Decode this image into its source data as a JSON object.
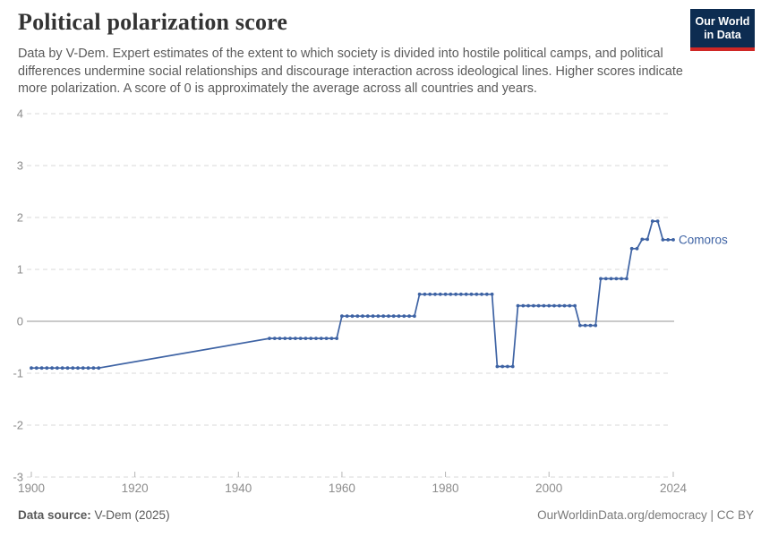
{
  "header": {
    "title": "Political polarization score",
    "subtitle": "Data by V-Dem. Expert estimates of the extent to which society is divided into hostile political camps, and political differences undermine social relationships and discourage interaction across ideological lines. Higher scores indicate more polarization. A score of 0 is approximately the average across all countries and years.",
    "logo": {
      "line1": "Our World",
      "line2": "in Data",
      "bg_color": "#0d2c51",
      "accent_color": "#cf2725"
    }
  },
  "chart_data": {
    "type": "line",
    "title": "Political polarization score",
    "xlabel": "",
    "ylabel": "",
    "xlim": [
      1900,
      2024
    ],
    "ylim": [
      -3,
      4
    ],
    "x_ticks": [
      1900,
      1920,
      1940,
      1960,
      1980,
      2000,
      2024
    ],
    "y_ticks": [
      4,
      3,
      2,
      1,
      0,
      -1,
      -2,
      -3
    ],
    "grid": "horizontal-dashed",
    "zero_line": true,
    "legend_position": "end-of-line-label",
    "series": [
      {
        "name": "Comoros",
        "color": "#3e63a4",
        "marker": "circle",
        "interpolated_gap": {
          "from": 1913,
          "to": 1946
        },
        "segments": [
          {
            "from": 1900,
            "to": 1913,
            "value": -0.9
          },
          {
            "from": 1946,
            "to": 1959,
            "value": -0.33
          },
          {
            "from": 1960,
            "to": 1974,
            "value": 0.1
          },
          {
            "from": 1975,
            "to": 1989,
            "value": 0.52
          },
          {
            "from": 1990,
            "to": 1993,
            "value": -0.87
          },
          {
            "from": 1994,
            "to": 2005,
            "value": 0.3
          },
          {
            "from": 2006,
            "to": 2009,
            "value": -0.08
          },
          {
            "from": 2010,
            "to": 2015,
            "value": 0.82
          },
          {
            "from": 2016,
            "to": 2017,
            "value": 1.4
          },
          {
            "from": 2018,
            "to": 2019,
            "value": 1.58
          },
          {
            "from": 2020,
            "to": 2021,
            "value": 1.93
          },
          {
            "from": 2022,
            "to": 2024,
            "value": 1.57
          }
        ]
      }
    ]
  },
  "footer": {
    "source_label": "Data source:",
    "source_value": " V-Dem (2025)",
    "right_link": "OurWorldinData.org/democracy",
    "right_license": " | CC BY"
  }
}
